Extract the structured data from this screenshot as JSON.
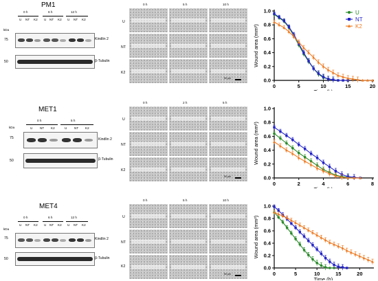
{
  "rows": [
    {
      "title": "PM1",
      "times": [
        "0 h",
        "6 h",
        "12 h"
      ],
      "lanes": [
        "U",
        "NT",
        "K2"
      ],
      "kda": "kDa",
      "marker_top": "75",
      "marker_bottom": "50",
      "protein_top": "Kindlin 2",
      "protein_bottom": "β-Tubulin",
      "micro_times": [
        "0 h",
        "5 h",
        "10 h"
      ],
      "micro_rows": [
        "U",
        "NT",
        "K2"
      ],
      "scale_label": "50 µm"
    },
    {
      "title": "MET1",
      "times": [
        "0 h",
        "5 h"
      ],
      "lanes": [
        "U",
        "NT",
        "K2"
      ],
      "kda": "kDa",
      "marker_top": "75",
      "marker_bottom": "50",
      "protein_top": "Kindlin 2",
      "protein_bottom": "β-Tubulin",
      "micro_times": [
        "0 h",
        "2 h",
        "5 h"
      ],
      "micro_rows": [
        "U",
        "NT",
        "K2"
      ],
      "scale_label": "50 µm"
    },
    {
      "title": "MET4",
      "times": [
        "0 h",
        "6 h",
        "12 h"
      ],
      "lanes": [
        "U",
        "NT",
        "K2"
      ],
      "kda": "kDa",
      "marker_top": "75",
      "marker_bottom": "50",
      "protein_top": "Kindlin 2",
      "protein_bottom": "β-Tubulin",
      "micro_times": [
        "0 h",
        "5 h",
        "10 h"
      ],
      "micro_rows": [
        "U",
        "NT",
        "K2"
      ],
      "scale_label": "50 µm"
    }
  ],
  "colors": {
    "U": "#2a8a2a",
    "NT": "#2323c8",
    "K2": "#ef7b22"
  },
  "chart_data": [
    {
      "type": "line",
      "title": "",
      "xlabel": "Time (h)",
      "ylabel": "Wound area (mm²)",
      "xlim": [
        0,
        20
      ],
      "ylim": [
        0,
        1.0
      ],
      "xticks": [
        0,
        5,
        10,
        15,
        20
      ],
      "yticks": [
        0.0,
        0.2,
        0.4,
        0.6,
        0.8,
        1.0
      ],
      "legend": "top-right",
      "series": [
        {
          "name": "U",
          "x": [
            0,
            1,
            2,
            3,
            4,
            5,
            6,
            7,
            8,
            9,
            10,
            11,
            12,
            13,
            14,
            15
          ],
          "y": [
            0.95,
            0.9,
            0.85,
            0.76,
            0.64,
            0.51,
            0.38,
            0.27,
            0.17,
            0.09,
            0.04,
            0.02,
            0.01,
            0,
            0,
            0
          ]
        },
        {
          "name": "NT",
          "x": [
            0,
            1,
            2,
            3,
            4,
            5,
            6,
            7,
            8,
            9,
            10,
            11,
            12,
            13,
            14,
            15
          ],
          "y": [
            0.96,
            0.91,
            0.86,
            0.77,
            0.66,
            0.53,
            0.4,
            0.28,
            0.17,
            0.1,
            0.05,
            0.02,
            0.01,
            0,
            0,
            0
          ]
        },
        {
          "name": "K2",
          "x": [
            0,
            1,
            2,
            3,
            4,
            5,
            6,
            7,
            8,
            9,
            10,
            11,
            12,
            13,
            14,
            15,
            16,
            17,
            18,
            19,
            20
          ],
          "y": [
            0.84,
            0.8,
            0.76,
            0.7,
            0.63,
            0.55,
            0.47,
            0.4,
            0.33,
            0.26,
            0.2,
            0.15,
            0.11,
            0.07,
            0.05,
            0.03,
            0.02,
            0.01,
            0,
            0,
            0
          ]
        }
      ]
    },
    {
      "type": "line",
      "title": "",
      "xlabel": "Time (h)",
      "ylabel": "Wound area (mm²)",
      "xlim": [
        0,
        8
      ],
      "ylim": [
        0,
        1.0
      ],
      "xticks": [
        0,
        2,
        4,
        6,
        8
      ],
      "yticks": [
        0.0,
        0.2,
        0.4,
        0.6,
        0.8,
        1.0
      ],
      "series": [
        {
          "name": "U",
          "x": [
            0,
            0.5,
            1,
            1.5,
            2,
            2.5,
            3,
            3.5,
            4,
            4.5,
            5,
            5.5,
            6,
            6.5,
            7
          ],
          "y": [
            0.64,
            0.57,
            0.5,
            0.43,
            0.36,
            0.3,
            0.24,
            0.18,
            0.12,
            0.08,
            0.04,
            0.02,
            0.01,
            0,
            0
          ]
        },
        {
          "name": "NT",
          "x": [
            0,
            0.5,
            1,
            1.5,
            2,
            2.5,
            3,
            3.5,
            4,
            4.5,
            5,
            5.5,
            6,
            6.5,
            7
          ],
          "y": [
            0.73,
            0.67,
            0.61,
            0.55,
            0.48,
            0.42,
            0.35,
            0.29,
            0.22,
            0.16,
            0.1,
            0.05,
            0.02,
            0.01,
            0
          ]
        },
        {
          "name": "K2",
          "x": [
            0,
            0.5,
            1,
            1.5,
            2,
            2.5,
            3,
            3.5,
            4,
            4.5,
            5,
            5.5,
            6,
            6.5,
            7
          ],
          "y": [
            0.52,
            0.46,
            0.4,
            0.35,
            0.29,
            0.24,
            0.19,
            0.14,
            0.1,
            0.06,
            0.03,
            0.01,
            0,
            0,
            0
          ]
        }
      ]
    },
    {
      "type": "line",
      "title": "",
      "xlabel": "Time (h)",
      "ylabel": "Wound area (mm²)",
      "xlim": [
        0,
        23
      ],
      "ylim": [
        0,
        1.0
      ],
      "xticks": [
        0,
        5,
        10,
        15,
        20
      ],
      "yticks": [
        0.0,
        0.2,
        0.4,
        0.6,
        0.8,
        1.0
      ],
      "series": [
        {
          "name": "U",
          "x": [
            0,
            1,
            2,
            3,
            4,
            5,
            6,
            7,
            8,
            9,
            10,
            11,
            12,
            13,
            14
          ],
          "y": [
            0.9,
            0.82,
            0.74,
            0.65,
            0.56,
            0.47,
            0.38,
            0.29,
            0.21,
            0.14,
            0.08,
            0.04,
            0.01,
            0,
            0
          ]
        },
        {
          "name": "NT",
          "x": [
            0,
            1,
            2,
            3,
            4,
            5,
            6,
            7,
            8,
            9,
            10,
            11,
            12,
            13,
            14,
            15,
            16,
            17
          ],
          "y": [
            0.99,
            0.93,
            0.86,
            0.79,
            0.72,
            0.65,
            0.58,
            0.51,
            0.44,
            0.37,
            0.3,
            0.23,
            0.16,
            0.1,
            0.05,
            0.02,
            0.01,
            0
          ]
        },
        {
          "name": "K2",
          "x": [
            0,
            1,
            2,
            3,
            4,
            5,
            6,
            7,
            8,
            9,
            10,
            11,
            12,
            13,
            14,
            15,
            16,
            17,
            18,
            19,
            20,
            21,
            22,
            23
          ],
          "y": [
            0.9,
            0.87,
            0.84,
            0.81,
            0.77,
            0.73,
            0.69,
            0.65,
            0.61,
            0.57,
            0.53,
            0.49,
            0.45,
            0.41,
            0.38,
            0.35,
            0.32,
            0.28,
            0.25,
            0.22,
            0.19,
            0.16,
            0.13,
            0.1
          ]
        }
      ]
    }
  ]
}
